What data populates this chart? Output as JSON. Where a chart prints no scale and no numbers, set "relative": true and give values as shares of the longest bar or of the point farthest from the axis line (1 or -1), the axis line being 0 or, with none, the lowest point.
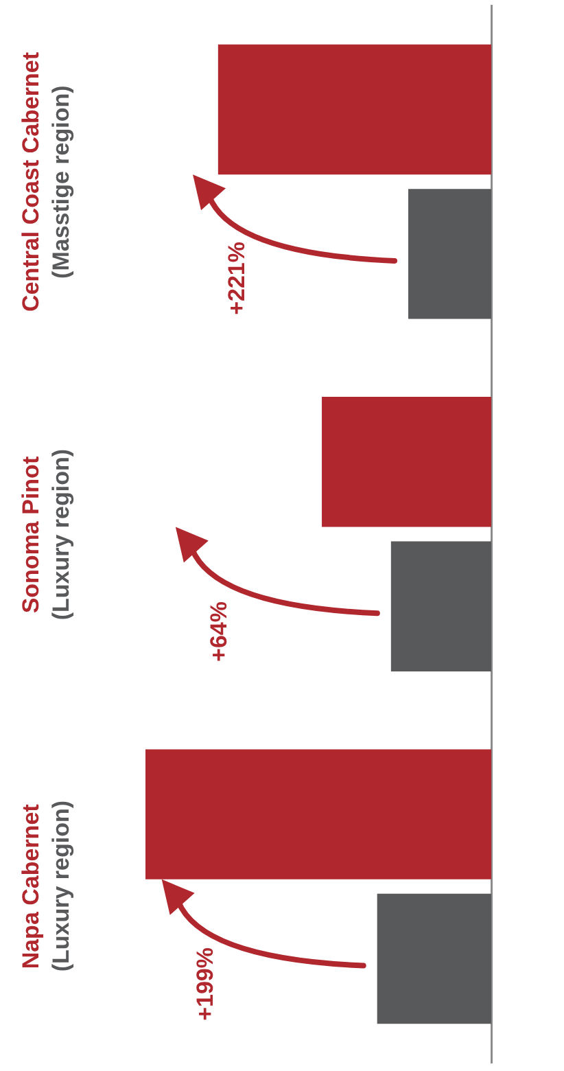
{
  "chart_data": {
    "type": "bar",
    "orientation": "horizontal",
    "relative": true,
    "categories": [
      "Central Coast Cabernet\n(Masstige region)",
      "Sonoma Pinot\n(Luxury region)",
      "Napa Cabernet\n(Luxury region)"
    ],
    "series": [
      {
        "color": "#b0272d",
        "values": [
          0.79,
          0.49,
          1
        ]
      },
      {
        "color": "#58595b",
        "values": [
          0.24,
          0.29,
          0.33
        ]
      }
    ],
    "annotations": [
      "+221%",
      "+64%",
      "+199%"
    ],
    "legend": false
  }
}
